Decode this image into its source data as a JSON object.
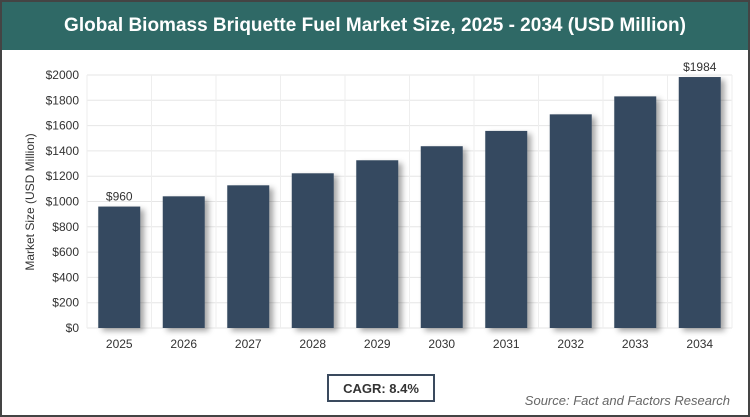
{
  "chart_data": {
    "type": "bar",
    "title": "Global Biomass Briquette Fuel Market Size, 2025 - 2034 (USD Million)",
    "xlabel": "",
    "ylabel": "Market Size (USD Million)",
    "categories": [
      "2025",
      "2026",
      "2027",
      "2028",
      "2029",
      "2030",
      "2031",
      "2032",
      "2033",
      "2034"
    ],
    "values": [
      960,
      1041,
      1128,
      1223,
      1326,
      1437,
      1558,
      1689,
      1831,
      1984
    ],
    "data_labels": {
      "0": "$960",
      "9": "$1984"
    },
    "ylim": [
      0,
      2000
    ],
    "yticks": [
      0,
      200,
      400,
      600,
      800,
      1000,
      1200,
      1400,
      1600,
      1800,
      2000
    ],
    "ytick_labels": [
      "$0",
      "$200",
      "$400",
      "$600",
      "$800",
      "$1000",
      "$1200",
      "$1400",
      "$1600",
      "$1800",
      "$2000"
    ],
    "grid": true,
    "bar_color": "#364a60"
  },
  "cagr": "CAGR: 8.4%",
  "source": "Source: Fact and Factors Research",
  "colors": {
    "header": "#2f6966"
  }
}
